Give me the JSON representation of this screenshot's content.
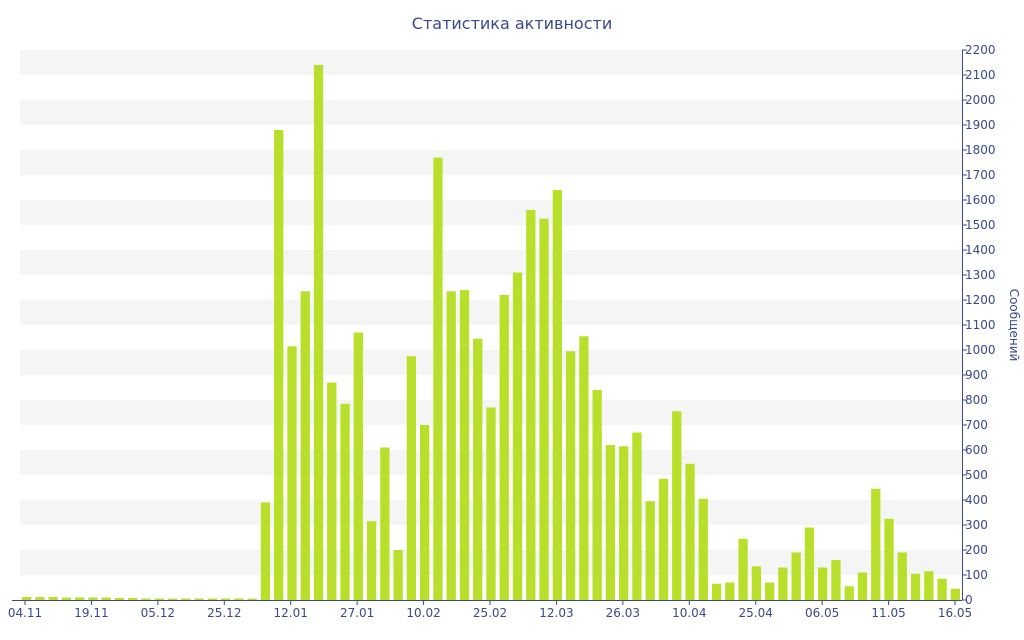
{
  "chart_data": {
    "type": "bar",
    "title": "Статистика активности",
    "xlabel": "",
    "ylabel": "Сообщений",
    "ylim": [
      0,
      2200
    ],
    "y_ticks": [
      0,
      100,
      200,
      300,
      400,
      500,
      600,
      700,
      800,
      900,
      1000,
      1100,
      1200,
      1300,
      1400,
      1500,
      1600,
      1700,
      1800,
      1900,
      2000,
      2100,
      2200
    ],
    "y_axis_side": "right",
    "grid": "alternating horizontal bands",
    "legend": "none",
    "x_tick_labels": [
      "04.11",
      "19.11",
      "05.12",
      "25.12",
      "12.01",
      "27.01",
      "10.02",
      "25.02",
      "12.03",
      "26.03",
      "10.04",
      "25.04",
      "06.05",
      "11.05",
      "16.05"
    ],
    "values": [
      12,
      12,
      12,
      10,
      10,
      10,
      10,
      8,
      8,
      6,
      6,
      6,
      6,
      6,
      6,
      6,
      6,
      6,
      390,
      1880,
      1015,
      1235,
      2140,
      870,
      785,
      1070,
      315,
      610,
      200,
      975,
      700,
      1770,
      1235,
      1240,
      1045,
      770,
      1220,
      1310,
      1560,
      1525,
      1640,
      995,
      1055,
      840,
      620,
      615,
      670,
      395,
      485,
      755,
      545,
      405,
      65,
      70,
      245,
      135,
      70,
      130,
      190,
      290,
      130,
      160,
      55,
      110,
      445,
      325,
      190,
      105,
      115,
      85,
      45
    ],
    "colors": {
      "bar": "#b8e02a",
      "band": "#f5f5f5",
      "axis": "#3a4a8a",
      "text": "#3a4a8a"
    }
  }
}
